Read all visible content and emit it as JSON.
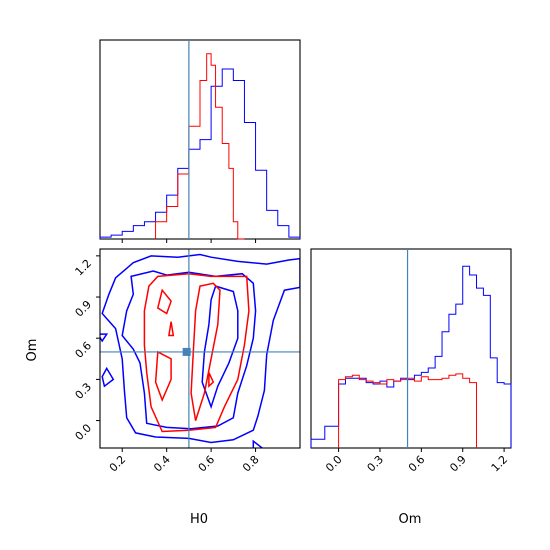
{
  "chart_data": {
    "type": "corner",
    "parameters": [
      "H0",
      "Om"
    ],
    "truth": {
      "H0": 0.5,
      "Om": 0.5
    },
    "colors": {
      "series_1": "#0000ff",
      "series_2": "#ff0000",
      "truth": "#4682b4"
    },
    "panels": [
      {
        "id": "h0-hist",
        "type": "histogram",
        "xlim": [
          0.1,
          1.0
        ],
        "xticks": [
          0.2,
          0.4,
          0.6,
          0.8
        ],
        "series": [
          {
            "color": "#0000ff",
            "bin_edges": [
              0.1,
              0.15,
              0.2,
              0.25,
              0.3,
              0.35,
              0.4,
              0.45,
              0.5,
              0.55,
              0.6,
              0.65,
              0.7,
              0.75,
              0.8,
              0.85,
              0.9,
              0.95,
              1.0
            ],
            "values": [
              1,
              2,
              4,
              7,
              9,
              14,
              23,
              37,
              47,
              52,
              80,
              89,
              83,
              61,
              36,
              15,
              7,
              1
            ]
          },
          {
            "color": "#ff0000",
            "bin_edges": [
              0.35,
              0.4,
              0.45,
              0.5,
              0.55,
              0.58,
              0.6,
              0.62,
              0.65,
              0.68,
              0.7,
              0.72,
              0.75
            ],
            "values": [
              9,
              17,
              34,
              59,
              83,
              97,
              91,
              69,
              50,
              37,
              9,
              0
            ]
          }
        ]
      },
      {
        "id": "om-hist",
        "type": "histogram",
        "xlim": [
          -0.2,
          1.25
        ],
        "xticks": [
          0.0,
          0.3,
          0.6,
          0.9,
          1.2
        ],
        "xticklabels": [
          "0.0",
          "0.3",
          "0.6",
          "0.9",
          "1.2"
        ],
        "series": [
          {
            "color": "#0000ff",
            "bin_edges": [
              -0.2,
              -0.1,
              0.0,
              0.05,
              0.1,
              0.15,
              0.2,
              0.25,
              0.3,
              0.35,
              0.4,
              0.45,
              0.5,
              0.55,
              0.6,
              0.65,
              0.7,
              0.75,
              0.8,
              0.85,
              0.9,
              0.95,
              1.0,
              1.05,
              1.1,
              1.15,
              1.2,
              1.25
            ],
            "values": [
              6,
              15,
              44,
              48,
              48,
              48,
              45,
              44,
              46,
              42,
              46,
              48,
              47,
              50,
              52,
              55,
              63,
              80,
              92,
              99,
              125,
              119,
              110,
              105,
              62,
              45,
              44
            ]
          },
          {
            "color": "#ff0000",
            "bin_edges": [
              0.0,
              0.05,
              0.1,
              0.15,
              0.2,
              0.25,
              0.3,
              0.35,
              0.4,
              0.45,
              0.5,
              0.55,
              0.6,
              0.65,
              0.7,
              0.75,
              0.8,
              0.85,
              0.9,
              0.95,
              1.0
            ],
            "values": [
              47,
              49,
              50,
              47,
              46,
              45,
              44,
              47,
              46,
              47,
              48,
              46,
              49,
              47,
              47,
              48,
              50,
              51,
              48,
              45
            ]
          }
        ]
      },
      {
        "id": "h0-om-2d",
        "type": "contour",
        "xlim": [
          0.1,
          1.0
        ],
        "ylim": [
          -0.2,
          1.25
        ],
        "xticks": [
          0.2,
          0.4,
          0.6,
          0.8
        ],
        "yticks": [
          0.0,
          0.3,
          0.6,
          0.9,
          1.2
        ],
        "yticklabels": [
          "0.0",
          "0.3",
          "0.6",
          "0.9",
          "1.2"
        ],
        "contours": [
          {
            "color": "#0000ff",
            "points": [
              [
                0.17,
                1.04
              ],
              [
                0.25,
                1.15
              ],
              [
                0.33,
                1.2
              ],
              [
                0.45,
                1.19
              ],
              [
                0.55,
                1.21
              ],
              [
                0.6,
                1.19
              ],
              [
                0.72,
                1.16
              ],
              [
                0.85,
                1.14
              ],
              [
                0.95,
                1.17
              ],
              [
                1.0,
                1.18
              ],
              [
                1.0,
                0.97
              ],
              [
                0.93,
                0.95
              ],
              [
                0.88,
                0.73
              ],
              [
                0.85,
                0.48
              ],
              [
                0.84,
                0.22
              ],
              [
                0.81,
                0.03
              ],
              [
                0.79,
                -0.07
              ],
              [
                0.7,
                -0.14
              ],
              [
                0.6,
                -0.16
              ],
              [
                0.5,
                -0.13
              ],
              [
                0.35,
                -0.12
              ],
              [
                0.26,
                -0.09
              ],
              [
                0.22,
                0.02
              ],
              [
                0.21,
                0.22
              ],
              [
                0.2,
                0.45
              ],
              [
                0.17,
                0.67
              ],
              [
                0.11,
                0.78
              ],
              [
                0.14,
                0.92
              ],
              [
                0.17,
                1.04
              ]
            ]
          },
          {
            "color": "#0000ff",
            "points": [
              [
                0.24,
                1.05
              ],
              [
                0.34,
                1.09
              ],
              [
                0.4,
                1.06
              ],
              [
                0.5,
                1.08
              ],
              [
                0.62,
                1.05
              ],
              [
                0.74,
                1.07
              ],
              [
                0.79,
                1.0
              ],
              [
                0.8,
                0.8
              ],
              [
                0.79,
                0.6
              ],
              [
                0.76,
                0.4
              ],
              [
                0.72,
                0.2
              ],
              [
                0.7,
                0.02
              ],
              [
                0.63,
                -0.04
              ],
              [
                0.51,
                -0.06
              ],
              [
                0.4,
                -0.05
              ],
              [
                0.31,
                -0.02
              ],
              [
                0.3,
                0.2
              ],
              [
                0.28,
                0.42
              ],
              [
                0.25,
                0.52
              ],
              [
                0.2,
                0.62
              ],
              [
                0.22,
                0.8
              ],
              [
                0.25,
                0.92
              ],
              [
                0.24,
                1.05
              ]
            ]
          },
          {
            "color": "#0000ff",
            "points": [
              [
                0.62,
                0.98
              ],
              [
                0.7,
                0.94
              ],
              [
                0.72,
                0.8
              ],
              [
                0.72,
                0.6
              ],
              [
                0.68,
                0.42
              ],
              [
                0.63,
                0.25
              ],
              [
                0.6,
                0.1
              ],
              [
                0.56,
                0.28
              ],
              [
                0.57,
                0.5
              ],
              [
                0.59,
                0.7
              ],
              [
                0.6,
                0.88
              ],
              [
                0.62,
                0.98
              ]
            ]
          },
          {
            "color": "#0000ff",
            "points": [
              [
                0.09,
                0.63
              ],
              [
                0.13,
                0.63
              ],
              [
                0.11,
                0.58
              ],
              [
                0.09,
                0.63
              ]
            ]
          },
          {
            "color": "#0000ff",
            "points": [
              [
                0.12,
                0.25
              ],
              [
                0.16,
                0.3
              ],
              [
                0.13,
                0.38
              ],
              [
                0.11,
                0.32
              ],
              [
                0.12,
                0.25
              ]
            ]
          },
          {
            "color": "#0000ff",
            "points": [
              [
                0.79,
                -0.15
              ],
              [
                0.83,
                -0.2
              ],
              [
                0.79,
                -0.22
              ],
              [
                0.79,
                -0.15
              ]
            ]
          },
          {
            "color": "#ff0000",
            "points": [
              [
                0.36,
                1.05
              ],
              [
                0.5,
                1.07
              ],
              [
                0.6,
                1.05
              ],
              [
                0.76,
                1.05
              ],
              [
                0.77,
                0.8
              ],
              [
                0.75,
                0.55
              ],
              [
                0.72,
                0.3
              ],
              [
                0.66,
                0.1
              ],
              [
                0.62,
                -0.05
              ],
              [
                0.5,
                -0.07
              ],
              [
                0.38,
                -0.08
              ],
              [
                0.33,
                0.1
              ],
              [
                0.31,
                0.35
              ],
              [
                0.3,
                0.55
              ],
              [
                0.3,
                0.8
              ],
              [
                0.32,
                0.98
              ],
              [
                0.36,
                1.05
              ]
            ]
          },
          {
            "color": "#ff0000",
            "points": [
              [
                0.55,
                0.98
              ],
              [
                0.61,
                1.0
              ],
              [
                0.64,
                0.95
              ],
              [
                0.63,
                0.7
              ],
              [
                0.6,
                0.45
              ],
              [
                0.57,
                0.2
              ],
              [
                0.53,
                0.0
              ],
              [
                0.51,
                0.2
              ],
              [
                0.52,
                0.5
              ],
              [
                0.53,
                0.8
              ],
              [
                0.55,
                0.98
              ]
            ]
          },
          {
            "color": "#ff0000",
            "points": [
              [
                0.36,
                0.5
              ],
              [
                0.42,
                0.45
              ],
              [
                0.42,
                0.3
              ],
              [
                0.38,
                0.15
              ],
              [
                0.35,
                0.28
              ],
              [
                0.36,
                0.5
              ]
            ]
          },
          {
            "color": "#ff0000",
            "points": [
              [
                0.38,
                0.95
              ],
              [
                0.42,
                0.87
              ],
              [
                0.4,
                0.78
              ],
              [
                0.36,
                0.82
              ],
              [
                0.38,
                0.95
              ]
            ]
          },
          {
            "color": "#ff0000",
            "points": [
              [
                0.42,
                0.72
              ],
              [
                0.43,
                0.62
              ],
              [
                0.41,
                0.62
              ],
              [
                0.42,
                0.72
              ]
            ]
          },
          {
            "color": "#ff0000",
            "points": [
              [
                0.59,
                0.35
              ],
              [
                0.61,
                0.28
              ],
              [
                0.59,
                0.25
              ],
              [
                0.59,
                0.35
              ]
            ]
          }
        ],
        "marker": [
          0.49,
          0.5
        ]
      }
    ],
    "xlabels": [
      "H0",
      "Om"
    ],
    "ylabel": "Om"
  }
}
